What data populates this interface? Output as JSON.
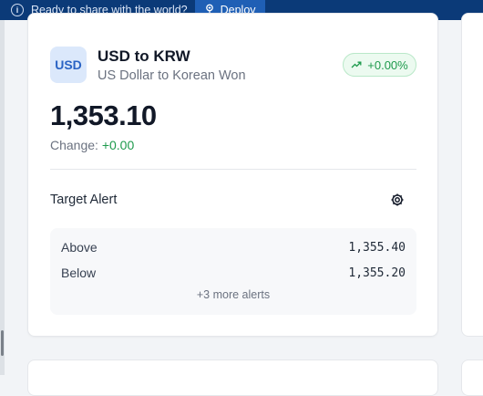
{
  "banner": {
    "message": "Ready to share with the world?",
    "deploy_label": "Deploy"
  },
  "card": {
    "badge": "USD",
    "title": "USD to KRW",
    "subtitle": "US Dollar to Korean Won",
    "change_pill": "+0.00%",
    "rate": "1,353.10",
    "change_label": "Change:",
    "change_value": "+0.00",
    "alert_title": "Target Alert",
    "alerts": [
      {
        "label": "Above",
        "value": "1,355.40"
      },
      {
        "label": "Below",
        "value": "1,355.20"
      }
    ],
    "more_alerts": "+3 more alerts"
  },
  "icons": {
    "info": "info-icon",
    "deploy": "balloon-icon",
    "trend": "trend-up-icon",
    "settings": "gear-icon"
  },
  "colors": {
    "banner_bg": "#0b3a78",
    "deploy_bg": "#1f5fb5",
    "positive": "#1e9a4c",
    "badge_bg": "#dbe8fb",
    "badge_text": "#2a63c4"
  }
}
